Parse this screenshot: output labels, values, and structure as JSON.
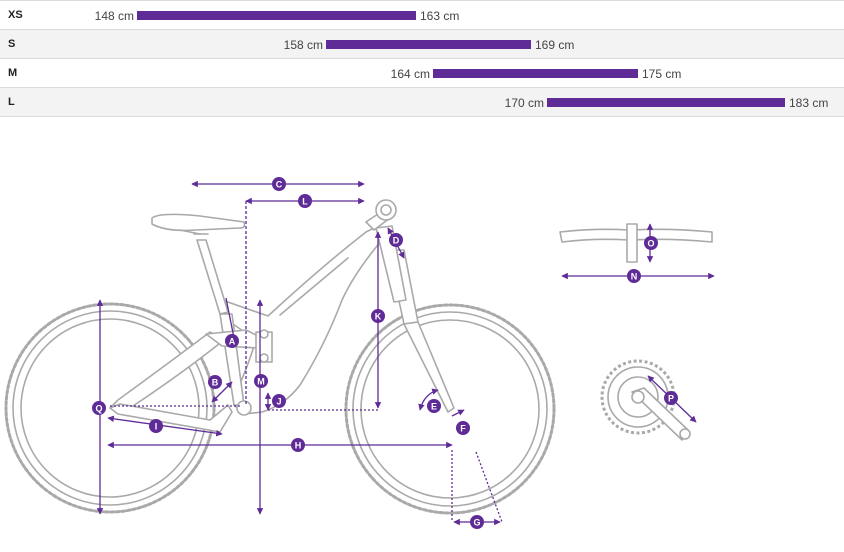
{
  "colors": {
    "accent": "#5e2b97",
    "frame": "#a9a9a9",
    "row_alt": "#f3f3f3"
  },
  "size_chart": [
    {
      "size": "XS",
      "min": "148 cm",
      "max": "163 cm",
      "min_cm": 148,
      "max_cm": 163
    },
    {
      "size": "S",
      "min": "158 cm",
      "max": "169 cm",
      "min_cm": 158,
      "max_cm": 169
    },
    {
      "size": "M",
      "min": "164 cm",
      "max": "175 cm",
      "min_cm": 164,
      "max_cm": 175
    },
    {
      "size": "L",
      "min": "170 cm",
      "max": "183 cm",
      "min_cm": 170,
      "max_cm": 183
    }
  ],
  "geometry_labels": {
    "A": "A",
    "B": "B",
    "C": "C",
    "D": "D",
    "E": "E",
    "F": "F",
    "G": "G",
    "H": "H",
    "I": "I",
    "J": "J",
    "K": "K",
    "L": "L",
    "M": "M",
    "N": "N",
    "O": "O",
    "P": "P",
    "Q": "Q"
  },
  "icons": {
    "bike": "mountain-bike-side-view-icon",
    "handlebar": "handlebar-icon",
    "crankset": "crankset-icon"
  }
}
